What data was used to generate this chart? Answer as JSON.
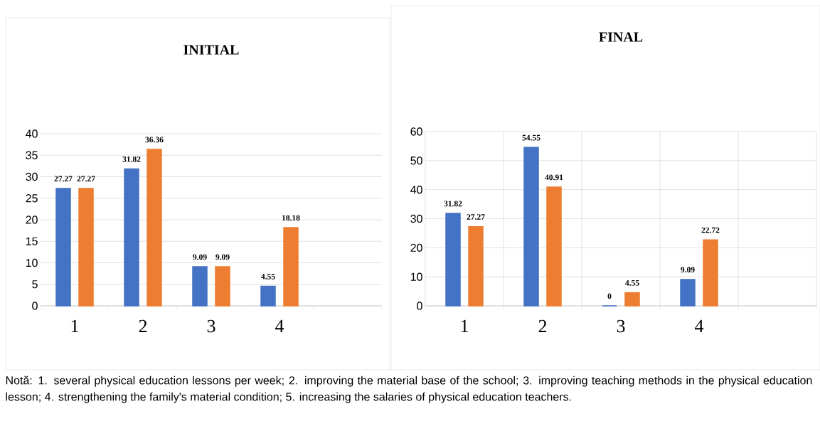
{
  "chart_data": [
    {
      "type": "bar",
      "title": "INITIAL",
      "categories": [
        "1",
        "2",
        "3",
        "4",
        null
      ],
      "series": [
        {
          "color": "#4472c4",
          "values": [
            27.27,
            31.82,
            9.09,
            4.55,
            null
          ]
        },
        {
          "color": "#ed7d31",
          "values": [
            27.27,
            36.36,
            9.09,
            18.18,
            null
          ]
        }
      ],
      "ylim": [
        0,
        40
      ],
      "yticks": [
        0,
        5,
        10,
        15,
        20,
        25,
        30,
        35,
        40
      ],
      "grid": "y",
      "data_labels": true,
      "annotations": [
        "Notă: 1. several physical education lessons per week; 2. improving the material base of the school; 3. improving teaching methods in the physical education lesson; 4. strengthening the family's material condition; 5. increasing the salaries of physical education teachers."
      ]
    },
    {
      "type": "bar",
      "title": "FINAL",
      "categories": [
        "1",
        "2",
        "3",
        "4",
        null
      ],
      "series": [
        {
          "color": "#4472c4",
          "values": [
            31.82,
            54.55,
            0,
            9.09,
            null
          ]
        },
        {
          "color": "#ed7d31",
          "values": [
            27.27,
            40.91,
            4.55,
            22.72,
            null
          ]
        }
      ],
      "ylim": [
        0,
        60
      ],
      "yticks": [
        0,
        10,
        20,
        30,
        40,
        50,
        60
      ],
      "grid": true,
      "data_labels": true
    }
  ]
}
